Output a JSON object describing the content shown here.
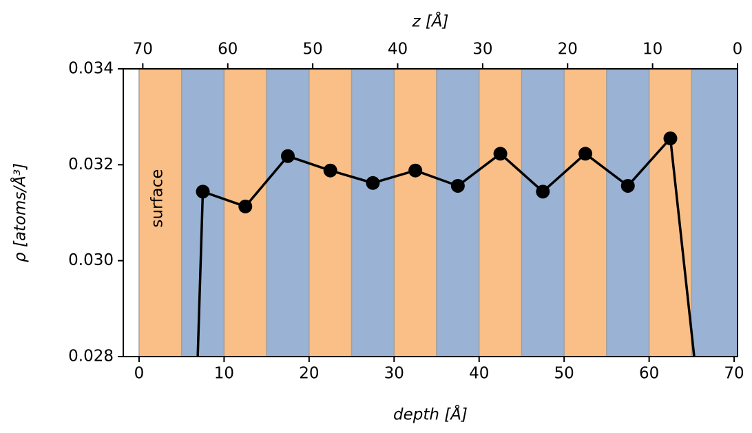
{
  "chart_data": {
    "type": "line",
    "x_label": "depth [Å]",
    "x2_label": "z [Å]",
    "y_label": "ρ [atoms/Å³]",
    "annotation": {
      "text": "surface",
      "x": 2.2,
      "y": 0.0313
    },
    "xlim": [
      -1.86,
      70.4
    ],
    "xticks": [
      0,
      10,
      20,
      30,
      40,
      50,
      60,
      70
    ],
    "x2lim": [
      72.3,
      0
    ],
    "x2ticks": [
      70,
      60,
      50,
      40,
      30,
      20,
      10,
      0
    ],
    "ylim": [
      0.028,
      0.034
    ],
    "yticks": [
      0.028,
      {
        "value": 0.03,
        "label": "0.030"
      },
      0.032,
      0.034
    ],
    "bands": {
      "edges": [
        0,
        5,
        10,
        15,
        20,
        25,
        30,
        35,
        40,
        45,
        50,
        55,
        60,
        65,
        70.4
      ],
      "colors": [
        "#f9bf87",
        "#9ab2d3"
      ]
    },
    "color": "#000000",
    "x": [
      7.5,
      12.5,
      17.5,
      22.5,
      27.5,
      32.5,
      37.5,
      42.5,
      47.5,
      52.5,
      57.5,
      62.5
    ],
    "values": [
      0.03144,
      0.03113,
      0.03218,
      0.03188,
      0.03162,
      0.03188,
      0.03156,
      0.03223,
      0.03144,
      0.03223,
      0.03156,
      0.03255
    ],
    "ends": {
      "x": [
        6.9,
        65.3
      ],
      "values": [
        0.028,
        0.028
      ]
    }
  }
}
